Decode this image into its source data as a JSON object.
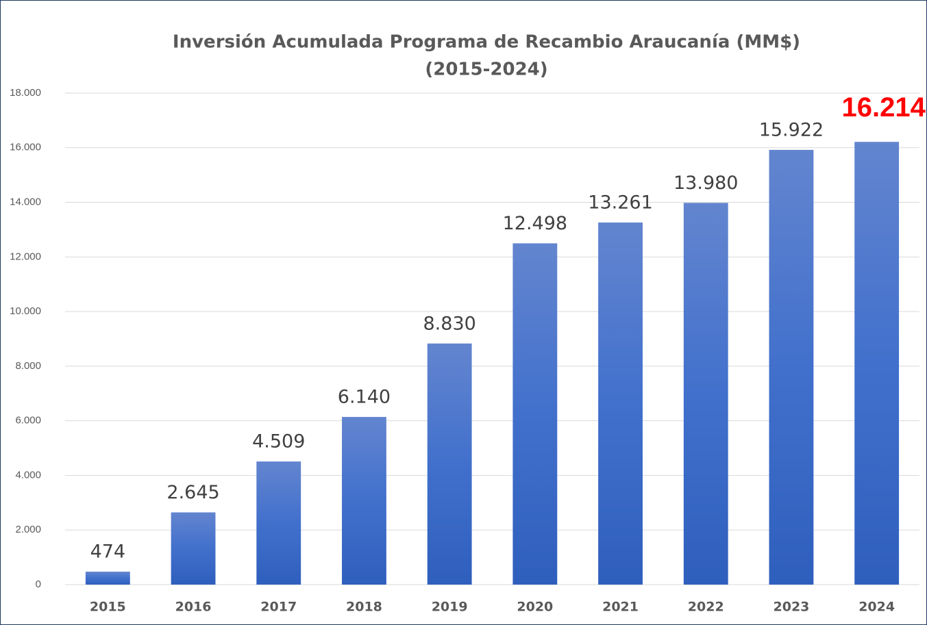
{
  "chart_data": {
    "type": "bar",
    "title": "Inversión Acumulada Programa de Recambio Araucanía (MM$)",
    "subtitle": "(2015-2024)",
    "categories": [
      "2015",
      "2016",
      "2017",
      "2018",
      "2019",
      "2020",
      "2021",
      "2022",
      "2023",
      "2024"
    ],
    "values": [
      474,
      2645,
      4509,
      6140,
      8830,
      12498,
      13261,
      13980,
      15922,
      16214
    ],
    "value_labels": [
      "474",
      "2.645",
      "4.509",
      "6.140",
      "8.830",
      "12.498",
      "13.261",
      "13.980",
      "15.922",
      "16.214"
    ],
    "value_label_colors": [
      "#404040",
      "#404040",
      "#404040",
      "#404040",
      "#404040",
      "#404040",
      "#404040",
      "#404040",
      "#404040",
      "#ff0000"
    ],
    "color": "#4472c4",
    "ylim": [
      0,
      18000
    ],
    "yticks": [
      0,
      {
        "value": 2000,
        "label": "2.000"
      },
      {
        "value": 4000,
        "label": "4.000"
      },
      {
        "value": 6000,
        "label": "6.000"
      },
      {
        "value": 8000,
        "label": "8.000"
      },
      {
        "value": 10000,
        "label": "10.000"
      },
      {
        "value": 12000,
        "label": "12.000"
      },
      {
        "value": 14000,
        "label": "14.000"
      },
      {
        "value": 16000,
        "label": "16.000"
      },
      {
        "value": 18000,
        "label": "18.000"
      }
    ],
    "grid": true
  }
}
